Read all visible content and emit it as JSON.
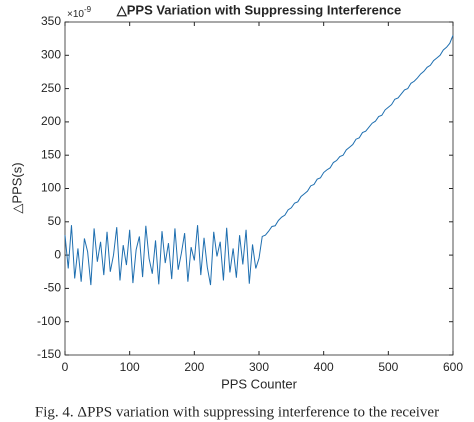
{
  "chart_data": {
    "type": "line",
    "title": "△PPS Variation with Suppressing Interference",
    "y_multiplier": {
      "base": "×10",
      "exponent": "-9"
    },
    "xlabel": "PPS Counter",
    "ylabel": "△PPS(s)",
    "caption": "Fig. 4. ΔPPS variation with suppressing interference to the receiver",
    "x": [
      0,
      5,
      10,
      15,
      20,
      25,
      30,
      35,
      40,
      45,
      50,
      55,
      60,
      65,
      70,
      75,
      80,
      85,
      90,
      95,
      100,
      105,
      110,
      115,
      120,
      125,
      130,
      135,
      140,
      145,
      150,
      155,
      160,
      165,
      170,
      175,
      180,
      185,
      190,
      195,
      200,
      205,
      210,
      215,
      220,
      225,
      230,
      235,
      240,
      245,
      250,
      255,
      260,
      265,
      270,
      275,
      280,
      285,
      290,
      295,
      300,
      305,
      310,
      315,
      320,
      325,
      330,
      335,
      340,
      345,
      350,
      355,
      360,
      365,
      370,
      375,
      380,
      385,
      390,
      395,
      400,
      405,
      410,
      415,
      420,
      425,
      430,
      435,
      440,
      445,
      450,
      455,
      460,
      465,
      470,
      475,
      480,
      485,
      490,
      495,
      500,
      505,
      510,
      515,
      520,
      525,
      530,
      535,
      540,
      545,
      550,
      555,
      560,
      565,
      570,
      575,
      580,
      585,
      590,
      595,
      600
    ],
    "series": [
      {
        "name": "ΔPPS",
        "color": "#1f6fb0",
        "values": [
          30,
          -20,
          45,
          -35,
          10,
          -40,
          25,
          5,
          -45,
          40,
          -10,
          20,
          -30,
          35,
          -25,
          0,
          42,
          -38,
          15,
          -15,
          38,
          -42,
          8,
          28,
          -33,
          44,
          -5,
          -28,
          22,
          -44,
          36,
          -12,
          18,
          -36,
          40,
          -22,
          3,
          33,
          -40,
          12,
          -8,
          45,
          -30,
          26,
          -18,
          -45,
          35,
          -2,
          20,
          -38,
          41,
          -26,
          10,
          -34,
          30,
          -14,
          38,
          -43,
          16,
          -20,
          -5,
          28,
          30,
          36,
          43,
          44,
          52,
          57,
          60,
          68,
          71,
          78,
          80,
          88,
          92,
          96,
          104,
          106,
          114,
          116,
          124,
          128,
          131,
          139,
          142,
          148,
          150,
          158,
          162,
          166,
          174,
          176,
          184,
          186,
          192,
          198,
          201,
          208,
          210,
          218,
          222,
          226,
          234,
          236,
          242,
          248,
          250,
          258,
          261,
          266,
          272,
          276,
          282,
          285,
          292,
          296,
          300,
          308,
          312,
          318,
          330
        ]
      }
    ],
    "xlim": [
      0,
      600
    ],
    "xticks": [
      0,
      100,
      200,
      300,
      400,
      500,
      600
    ],
    "ylim": [
      -150,
      350
    ],
    "yticks": [
      -150,
      -100,
      -50,
      0,
      50,
      100,
      150,
      200,
      250,
      300,
      350
    ]
  }
}
